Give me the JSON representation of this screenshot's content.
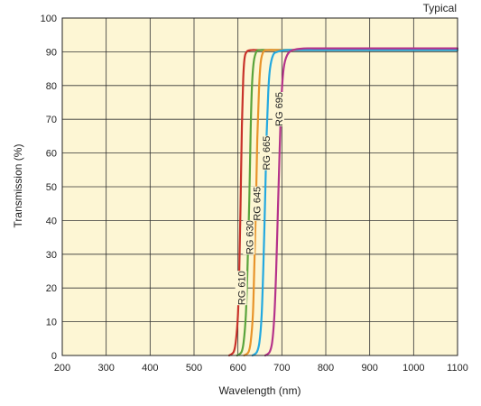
{
  "chart_data": {
    "type": "line",
    "title": "",
    "note": "Typical",
    "xlabel": "Wavelength (nm)",
    "ylabel": "Transmission (%)",
    "xlim": [
      200,
      1100
    ],
    "ylim": [
      0,
      100
    ],
    "xticks": [
      200,
      300,
      400,
      500,
      600,
      700,
      800,
      900,
      1000,
      1100
    ],
    "yticks": [
      0,
      10,
      20,
      30,
      40,
      50,
      60,
      70,
      80,
      90,
      100
    ],
    "grid": true,
    "background": "#fdf6d4",
    "series": [
      {
        "name": "RG 610",
        "color": "#c8322a",
        "x": [
          580,
          590,
          595,
          600,
          603,
          606,
          609,
          612,
          615,
          620,
          630,
          650,
          700,
          800,
          900,
          1000,
          1100
        ],
        "y": [
          0,
          1,
          4,
          12,
          25,
          45,
          68,
          82,
          88,
          90,
          90.5,
          90.5,
          90.5,
          90.5,
          90.5,
          90.5,
          90.5
        ]
      },
      {
        "name": "RG 630",
        "color": "#5aa43c",
        "x": [
          598,
          608,
          613,
          618,
          622,
          626,
          629,
          632,
          636,
          642,
          650,
          670,
          700,
          800,
          900,
          1000,
          1100
        ],
        "y": [
          0,
          1,
          4,
          12,
          27,
          47,
          67,
          80,
          87,
          90,
          90.5,
          90.5,
          90.5,
          90.5,
          90.5,
          90.5,
          90.5
        ]
      },
      {
        "name": "RG 645",
        "color": "#e8942a",
        "x": [
          614,
          624,
          629,
          634,
          637,
          641,
          644,
          648,
          652,
          658,
          668,
          690,
          720,
          800,
          900,
          1000,
          1100
        ],
        "y": [
          0,
          1,
          4,
          12,
          25,
          45,
          64,
          79,
          87,
          90,
          90.5,
          90.5,
          90.5,
          90.5,
          90.5,
          90.5,
          90.5
        ]
      },
      {
        "name": "RG 665",
        "color": "#23a9e0",
        "x": [
          633,
          643,
          649,
          654,
          658,
          662,
          665,
          669,
          673,
          680,
          690,
          710,
          740,
          800,
          900,
          1000,
          1100
        ],
        "y": [
          0,
          1,
          4,
          12,
          27,
          47,
          64,
          78,
          85,
          89,
          90,
          90.5,
          90.5,
          90.5,
          90.5,
          90.5,
          90.5
        ]
      },
      {
        "name": "RG 695",
        "color": "#b5338a",
        "x": [
          662,
          672,
          678,
          683,
          687,
          691,
          695,
          699,
          704,
          712,
          725,
          750,
          780,
          850,
          900,
          1000,
          1100
        ],
        "y": [
          0,
          1,
          4,
          12,
          25,
          43,
          61,
          76,
          85,
          89,
          90.5,
          91,
          91,
          91,
          91,
          91,
          91
        ]
      }
    ],
    "annotations": [
      {
        "text": "RG 610",
        "series": 0,
        "x": 608,
        "y": 20
      },
      {
        "text": "RG 630",
        "series": 1,
        "x": 626,
        "y": 35
      },
      {
        "text": "RG 645",
        "series": 2,
        "x": 643,
        "y": 45
      },
      {
        "text": "RG 665",
        "series": 3,
        "x": 664,
        "y": 60
      },
      {
        "text": "RG 695",
        "series": 4,
        "x": 693,
        "y": 73
      }
    ]
  }
}
